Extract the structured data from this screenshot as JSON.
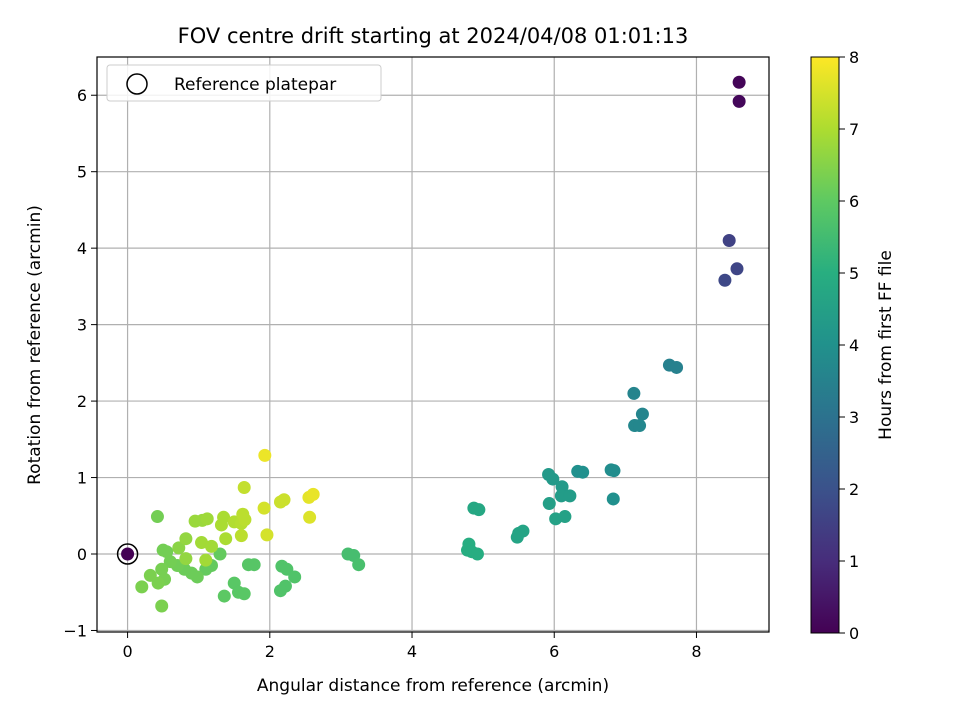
{
  "chart_data": {
    "type": "scatter",
    "title": "FOV centre drift starting at 2024/04/08 01:01:13",
    "xlabel": "Angular distance from reference (arcmin)",
    "ylabel": "Rotation from reference (arcmin)",
    "xlim": [
      -0.43,
      9.02
    ],
    "ylim": [
      -1.02,
      6.5
    ],
    "xticks": [
      0,
      2,
      4,
      6,
      8
    ],
    "yticks": [
      -1,
      0,
      1,
      2,
      3,
      4,
      5,
      6
    ],
    "grid": true,
    "colormap": "viridis",
    "colorbar": {
      "label": "Hours from first FF file",
      "min": 0,
      "max": 8,
      "ticks": [
        0,
        1,
        2,
        3,
        4,
        5,
        6,
        7,
        8
      ]
    },
    "legend": {
      "position": "top-left",
      "entries": [
        "Reference platepar"
      ]
    },
    "reference_point": {
      "x": 0,
      "y": 0,
      "hours": 0
    },
    "points": [
      {
        "x": 8.6,
        "y": 6.17,
        "h": 0.1
      },
      {
        "x": 8.6,
        "y": 5.92,
        "h": 0.15
      },
      {
        "x": 8.46,
        "y": 4.1,
        "h": 1.6
      },
      {
        "x": 8.57,
        "y": 3.73,
        "h": 1.7
      },
      {
        "x": 8.4,
        "y": 3.58,
        "h": 1.75
      },
      {
        "x": 7.62,
        "y": 2.47,
        "h": 3.5
      },
      {
        "x": 7.72,
        "y": 2.44,
        "h": 3.5
      },
      {
        "x": 7.12,
        "y": 2.1,
        "h": 3.6
      },
      {
        "x": 7.24,
        "y": 1.83,
        "h": 3.65
      },
      {
        "x": 7.13,
        "y": 1.68,
        "h": 3.7
      },
      {
        "x": 7.2,
        "y": 1.68,
        "h": 3.7
      },
      {
        "x": 6.8,
        "y": 1.1,
        "h": 3.9
      },
      {
        "x": 6.84,
        "y": 1.09,
        "h": 3.9
      },
      {
        "x": 6.33,
        "y": 1.08,
        "h": 4.0
      },
      {
        "x": 6.4,
        "y": 1.07,
        "h": 4.0
      },
      {
        "x": 5.92,
        "y": 1.04,
        "h": 4.3
      },
      {
        "x": 5.98,
        "y": 0.98,
        "h": 4.3
      },
      {
        "x": 6.11,
        "y": 0.88,
        "h": 4.35
      },
      {
        "x": 6.1,
        "y": 0.76,
        "h": 4.4
      },
      {
        "x": 6.22,
        "y": 0.76,
        "h": 4.4
      },
      {
        "x": 5.93,
        "y": 0.66,
        "h": 4.5
      },
      {
        "x": 6.83,
        "y": 0.72,
        "h": 4.0
      },
      {
        "x": 6.02,
        "y": 0.46,
        "h": 4.6
      },
      {
        "x": 6.15,
        "y": 0.49,
        "h": 4.6
      },
      {
        "x": 4.87,
        "y": 0.6,
        "h": 4.8
      },
      {
        "x": 4.94,
        "y": 0.58,
        "h": 4.8
      },
      {
        "x": 5.56,
        "y": 0.3,
        "h": 4.7
      },
      {
        "x": 5.5,
        "y": 0.27,
        "h": 4.7
      },
      {
        "x": 5.48,
        "y": 0.22,
        "h": 4.7
      },
      {
        "x": 4.8,
        "y": 0.13,
        "h": 5.0
      },
      {
        "x": 4.78,
        "y": 0.05,
        "h": 5.0
      },
      {
        "x": 4.84,
        "y": 0.03,
        "h": 5.0
      },
      {
        "x": 4.92,
        "y": 0.0,
        "h": 5.0
      },
      {
        "x": 3.1,
        "y": 0.0,
        "h": 5.6
      },
      {
        "x": 3.18,
        "y": -0.02,
        "h": 5.6
      },
      {
        "x": 3.25,
        "y": -0.14,
        "h": 5.65
      },
      {
        "x": 2.17,
        "y": -0.16,
        "h": 5.8
      },
      {
        "x": 2.24,
        "y": -0.2,
        "h": 5.8
      },
      {
        "x": 2.35,
        "y": -0.3,
        "h": 5.8
      },
      {
        "x": 2.22,
        "y": -0.42,
        "h": 5.8
      },
      {
        "x": 2.15,
        "y": -0.48,
        "h": 5.8
      },
      {
        "x": 1.7,
        "y": -0.14,
        "h": 5.9
      },
      {
        "x": 1.78,
        "y": -0.14,
        "h": 5.9
      },
      {
        "x": 1.5,
        "y": -0.38,
        "h": 5.95
      },
      {
        "x": 1.56,
        "y": -0.5,
        "h": 5.95
      },
      {
        "x": 1.64,
        "y": -0.52,
        "h": 5.95
      },
      {
        "x": 1.36,
        "y": -0.55,
        "h": 6.0
      },
      {
        "x": 1.3,
        "y": 0.0,
        "h": 6.1
      },
      {
        "x": 1.18,
        "y": -0.15,
        "h": 6.1
      },
      {
        "x": 1.1,
        "y": -0.2,
        "h": 6.1
      },
      {
        "x": 0.98,
        "y": -0.3,
        "h": 6.2
      },
      {
        "x": 0.9,
        "y": -0.25,
        "h": 6.2
      },
      {
        "x": 0.8,
        "y": -0.2,
        "h": 6.2
      },
      {
        "x": 0.7,
        "y": -0.15,
        "h": 6.25
      },
      {
        "x": 0.6,
        "y": -0.1,
        "h": 6.3
      },
      {
        "x": 0.5,
        "y": 0.05,
        "h": 6.3
      },
      {
        "x": 0.55,
        "y": 0.03,
        "h": 6.3
      },
      {
        "x": 0.48,
        "y": -0.2,
        "h": 6.35
      },
      {
        "x": 0.52,
        "y": -0.33,
        "h": 6.35
      },
      {
        "x": 0.43,
        "y": -0.38,
        "h": 6.4
      },
      {
        "x": 0.32,
        "y": -0.28,
        "h": 6.4
      },
      {
        "x": 0.2,
        "y": -0.43,
        "h": 6.4
      },
      {
        "x": 0.48,
        "y": -0.68,
        "h": 6.4
      },
      {
        "x": 0.42,
        "y": 0.49,
        "h": 6.3
      },
      {
        "x": 0.72,
        "y": 0.08,
        "h": 6.6
      },
      {
        "x": 0.82,
        "y": 0.2,
        "h": 6.7
      },
      {
        "x": 0.82,
        "y": -0.06,
        "h": 6.7
      },
      {
        "x": 0.95,
        "y": 0.43,
        "h": 6.8
      },
      {
        "x": 1.05,
        "y": 0.44,
        "h": 6.8
      },
      {
        "x": 1.12,
        "y": 0.46,
        "h": 6.85
      },
      {
        "x": 1.04,
        "y": 0.15,
        "h": 6.9
      },
      {
        "x": 1.18,
        "y": 0.1,
        "h": 6.9
      },
      {
        "x": 1.1,
        "y": -0.08,
        "h": 6.9
      },
      {
        "x": 1.32,
        "y": 0.38,
        "h": 7.0
      },
      {
        "x": 1.35,
        "y": 0.48,
        "h": 7.0
      },
      {
        "x": 1.38,
        "y": 0.2,
        "h": 7.0
      },
      {
        "x": 1.5,
        "y": 0.42,
        "h": 7.1
      },
      {
        "x": 1.6,
        "y": 0.4,
        "h": 7.15
      },
      {
        "x": 1.65,
        "y": 0.45,
        "h": 7.2
      },
      {
        "x": 1.62,
        "y": 0.52,
        "h": 7.2
      },
      {
        "x": 1.6,
        "y": 0.24,
        "h": 7.2
      },
      {
        "x": 1.64,
        "y": 0.87,
        "h": 7.3
      },
      {
        "x": 2.15,
        "y": 0.68,
        "h": 7.4
      },
      {
        "x": 2.2,
        "y": 0.71,
        "h": 7.4
      },
      {
        "x": 1.92,
        "y": 0.6,
        "h": 7.5
      },
      {
        "x": 1.96,
        "y": 0.25,
        "h": 7.5
      },
      {
        "x": 2.56,
        "y": 0.48,
        "h": 7.6
      },
      {
        "x": 2.55,
        "y": 0.74,
        "h": 7.7
      },
      {
        "x": 2.61,
        "y": 0.78,
        "h": 7.75
      },
      {
        "x": 1.93,
        "y": 1.29,
        "h": 7.8
      }
    ]
  }
}
